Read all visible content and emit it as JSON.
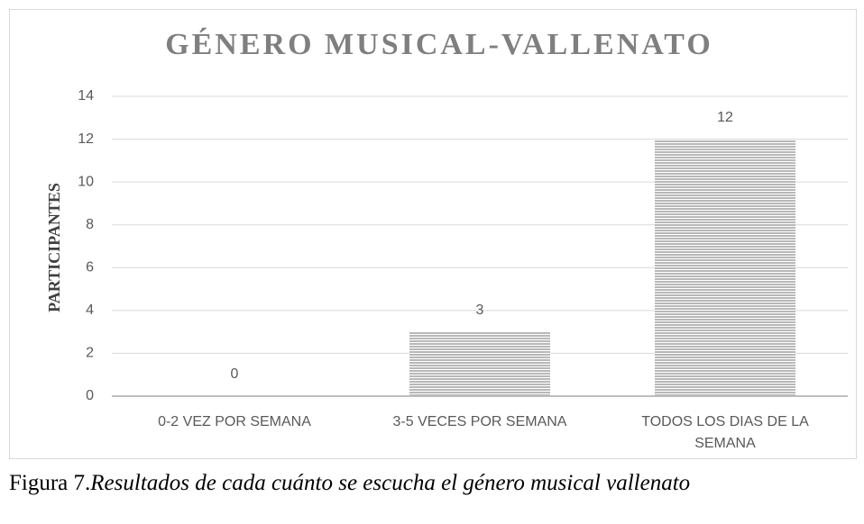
{
  "chart_data": {
    "type": "bar",
    "title": "GÉNERO MUSICAL-VALLENATO",
    "y_label": "PARTICIPANTES",
    "categories": [
      "0-2 VEZ POR SEMANA",
      "3-5 VECES POR SEMANA",
      "TODOS LOS DIAS DE LA SEMANA"
    ],
    "values": [
      0,
      3,
      12
    ],
    "color": "#a6a6a6",
    "ylim": [
      0,
      14
    ],
    "yticks": [
      0,
      2,
      4,
      6,
      8,
      10,
      12,
      14
    ],
    "grid": true
  },
  "caption": {
    "label": "Figura 7.",
    "text": "Resultados de cada cuánto se escucha el género musical vallenato"
  }
}
